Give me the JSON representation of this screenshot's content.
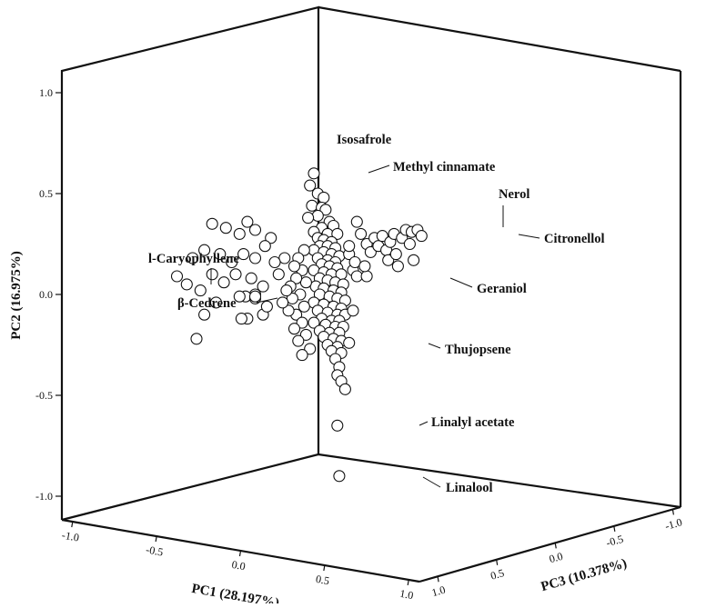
{
  "chart_data": {
    "type": "scatter",
    "projection": "3d",
    "axes": {
      "pc1": {
        "label": "PC1 (28.197%)",
        "ticks": [
          "-1.0",
          "-0.5",
          "0.0",
          "0.5",
          "1.0"
        ],
        "range": [
          -1,
          1
        ]
      },
      "pc2": {
        "label": "PC2 (16.975%)",
        "ticks": [
          "-1.0",
          "-0.5",
          "0.0",
          "0.5",
          "1.0"
        ],
        "range": [
          -1,
          1
        ]
      },
      "pc3": {
        "label": "PC3 (10.378%)",
        "ticks": [
          "1.0",
          "0.5",
          "0.0",
          "-0.5",
          "-1.0"
        ],
        "range": [
          -1,
          1
        ]
      }
    },
    "annotations": [
      {
        "text": "Isosafrole",
        "x": 0.0,
        "y": 0.67
      },
      {
        "text": "Methyl cinnamate",
        "x": 0.02,
        "y": 0.6
      },
      {
        "text": "Nerol",
        "x": 0.53,
        "y": 0.32
      },
      {
        "text": "Citronellol",
        "x": 0.55,
        "y": 0.29
      },
      {
        "text": "l-Caryophyllene",
        "x": -0.65,
        "y": 0.05
      },
      {
        "text": "Geraniol",
        "x": 0.27,
        "y": 0.09
      },
      {
        "text": "β-Cedrene",
        "x": -0.38,
        "y": -0.01
      },
      {
        "text": "Thujopsene",
        "x": 0.18,
        "y": -0.24
      },
      {
        "text": "Linalyl acetate",
        "x": 0.12,
        "y": -0.65
      },
      {
        "text": "Linalool",
        "x": 0.13,
        "y": -0.9
      }
    ],
    "points": [
      {
        "x": 0.0,
        "y": 0.6
      },
      {
        "x": -0.02,
        "y": 0.54
      },
      {
        "x": 0.02,
        "y": 0.5
      },
      {
        "x": 0.05,
        "y": 0.48
      },
      {
        "x": -0.01,
        "y": 0.44
      },
      {
        "x": 0.04,
        "y": 0.43
      },
      {
        "x": 0.06,
        "y": 0.42
      },
      {
        "x": 0.02,
        "y": 0.39
      },
      {
        "x": -0.03,
        "y": 0.38
      },
      {
        "x": 0.08,
        "y": 0.36
      },
      {
        "x": 0.1,
        "y": 0.34
      },
      {
        "x": 0.04,
        "y": 0.33
      },
      {
        "x": 0.0,
        "y": 0.31
      },
      {
        "x": 0.07,
        "y": 0.3
      },
      {
        "x": 0.12,
        "y": 0.3
      },
      {
        "x": 0.02,
        "y": 0.28
      },
      {
        "x": 0.05,
        "y": 0.27
      },
      {
        "x": 0.09,
        "y": 0.26
      },
      {
        "x": 0.03,
        "y": 0.24
      },
      {
        "x": 0.07,
        "y": 0.24
      },
      {
        "x": 0.11,
        "y": 0.23
      },
      {
        "x": 0.0,
        "y": 0.22
      },
      {
        "x": 0.05,
        "y": 0.21
      },
      {
        "x": 0.09,
        "y": 0.2
      },
      {
        "x": 0.13,
        "y": 0.19
      },
      {
        "x": 0.02,
        "y": 0.18
      },
      {
        "x": 0.07,
        "y": 0.17
      },
      {
        "x": 0.11,
        "y": 0.16
      },
      {
        "x": 0.04,
        "y": 0.15
      },
      {
        "x": 0.08,
        "y": 0.14
      },
      {
        "x": 0.12,
        "y": 0.13
      },
      {
        "x": 0.0,
        "y": 0.12
      },
      {
        "x": 0.05,
        "y": 0.11
      },
      {
        "x": 0.09,
        "y": 0.1
      },
      {
        "x": 0.14,
        "y": 0.1
      },
      {
        "x": 0.03,
        "y": 0.08
      },
      {
        "x": 0.07,
        "y": 0.07
      },
      {
        "x": 0.11,
        "y": 0.06
      },
      {
        "x": 0.15,
        "y": 0.05
      },
      {
        "x": 0.01,
        "y": 0.04
      },
      {
        "x": 0.05,
        "y": 0.03
      },
      {
        "x": 0.1,
        "y": 0.02
      },
      {
        "x": 0.14,
        "y": 0.01
      },
      {
        "x": 0.03,
        "y": 0.0
      },
      {
        "x": 0.08,
        "y": -0.01
      },
      {
        "x": 0.12,
        "y": -0.02
      },
      {
        "x": 0.16,
        "y": -0.03
      },
      {
        "x": 0.0,
        "y": -0.04
      },
      {
        "x": 0.05,
        "y": -0.05
      },
      {
        "x": 0.1,
        "y": -0.06
      },
      {
        "x": 0.14,
        "y": -0.07
      },
      {
        "x": 0.02,
        "y": -0.08
      },
      {
        "x": 0.07,
        "y": -0.09
      },
      {
        "x": 0.12,
        "y": -0.1
      },
      {
        "x": 0.16,
        "y": -0.1
      },
      {
        "x": 0.04,
        "y": -0.12
      },
      {
        "x": 0.09,
        "y": -0.13
      },
      {
        "x": 0.13,
        "y": -0.13
      },
      {
        "x": 0.0,
        "y": -0.14
      },
      {
        "x": 0.06,
        "y": -0.15
      },
      {
        "x": 0.11,
        "y": -0.16
      },
      {
        "x": 0.15,
        "y": -0.16
      },
      {
        "x": 0.03,
        "y": -0.18
      },
      {
        "x": 0.08,
        "y": -0.19
      },
      {
        "x": 0.13,
        "y": -0.19
      },
      {
        "x": 0.05,
        "y": -0.21
      },
      {
        "x": 0.1,
        "y": -0.22
      },
      {
        "x": 0.14,
        "y": -0.23
      },
      {
        "x": 0.07,
        "y": -0.25
      },
      {
        "x": 0.12,
        "y": -0.26
      },
      {
        "x": 0.09,
        "y": -0.28
      },
      {
        "x": 0.14,
        "y": -0.29
      },
      {
        "x": 0.11,
        "y": -0.32
      },
      {
        "x": 0.13,
        "y": -0.36
      },
      {
        "x": 0.12,
        "y": -0.4
      },
      {
        "x": 0.14,
        "y": -0.43
      },
      {
        "x": 0.16,
        "y": -0.47
      },
      {
        "x": 0.18,
        "y": -0.24
      },
      {
        "x": -0.05,
        "y": 0.22
      },
      {
        "x": -0.08,
        "y": 0.18
      },
      {
        "x": -0.06,
        "y": 0.12
      },
      {
        "x": -0.1,
        "y": 0.14
      },
      {
        "x": -0.04,
        "y": 0.06
      },
      {
        "x": -0.09,
        "y": 0.08
      },
      {
        "x": -0.12,
        "y": 0.04
      },
      {
        "x": -0.07,
        "y": 0.0
      },
      {
        "x": -0.11,
        "y": -0.02
      },
      {
        "x": -0.05,
        "y": -0.06
      },
      {
        "x": -0.09,
        "y": -0.1
      },
      {
        "x": -0.13,
        "y": -0.08
      },
      {
        "x": -0.06,
        "y": -0.14
      },
      {
        "x": -0.1,
        "y": -0.17
      },
      {
        "x": -0.04,
        "y": -0.2
      },
      {
        "x": -0.08,
        "y": -0.23
      },
      {
        "x": -0.02,
        "y": -0.27
      },
      {
        "x": -0.06,
        "y": -0.3
      },
      {
        "x": -0.14,
        "y": 0.02
      },
      {
        "x": -0.16,
        "y": -0.04
      },
      {
        "x": -0.18,
        "y": 0.1
      },
      {
        "x": -0.15,
        "y": 0.18
      },
      {
        "x": -0.2,
        "y": 0.16
      },
      {
        "x": 0.18,
        "y": 0.2
      },
      {
        "x": 0.2,
        "y": 0.12
      },
      {
        "x": 0.2,
        "y": -0.08
      },
      {
        "x": 0.22,
        "y": 0.36
      },
      {
        "x": 0.21,
        "y": 0.16
      },
      {
        "x": 0.24,
        "y": 0.3
      },
      {
        "x": 0.27,
        "y": 0.25
      },
      {
        "x": 0.29,
        "y": 0.21
      },
      {
        "x": 0.31,
        "y": 0.28
      },
      {
        "x": 0.33,
        "y": 0.24
      },
      {
        "x": 0.35,
        "y": 0.29
      },
      {
        "x": 0.37,
        "y": 0.22
      },
      {
        "x": 0.38,
        "y": 0.17
      },
      {
        "x": 0.39,
        "y": 0.26
      },
      {
        "x": 0.41,
        "y": 0.3
      },
      {
        "x": 0.42,
        "y": 0.2
      },
      {
        "x": 0.43,
        "y": 0.14
      },
      {
        "x": 0.45,
        "y": 0.28
      },
      {
        "x": 0.47,
        "y": 0.32
      },
      {
        "x": 0.49,
        "y": 0.25
      },
      {
        "x": 0.5,
        "y": 0.31
      },
      {
        "x": 0.51,
        "y": 0.17
      },
      {
        "x": 0.53,
        "y": 0.32
      },
      {
        "x": 0.55,
        "y": 0.29
      },
      {
        "x": 0.22,
        "y": 0.09
      },
      {
        "x": 0.27,
        "y": 0.09
      },
      {
        "x": 0.18,
        "y": 0.24
      },
      {
        "x": 0.26,
        "y": 0.14
      },
      {
        "x": -0.3,
        "y": 0.32
      },
      {
        "x": -0.34,
        "y": 0.36
      },
      {
        "x": -0.38,
        "y": 0.3
      },
      {
        "x": -0.45,
        "y": 0.33
      },
      {
        "x": -0.52,
        "y": 0.35
      },
      {
        "x": -0.3,
        "y": 0.18
      },
      {
        "x": -0.36,
        "y": 0.2
      },
      {
        "x": -0.42,
        "y": 0.16
      },
      {
        "x": -0.48,
        "y": 0.2
      },
      {
        "x": -0.56,
        "y": 0.22
      },
      {
        "x": -0.62,
        "y": 0.18
      },
      {
        "x": -0.32,
        "y": 0.08
      },
      {
        "x": -0.4,
        "y": 0.1
      },
      {
        "x": -0.46,
        "y": 0.06
      },
      {
        "x": -0.52,
        "y": 0.1
      },
      {
        "x": -0.58,
        "y": 0.02
      },
      {
        "x": -0.65,
        "y": 0.05
      },
      {
        "x": -0.7,
        "y": 0.09
      },
      {
        "x": -0.26,
        "y": 0.04
      },
      {
        "x": -0.3,
        "y": 0.0
      },
      {
        "x": -0.35,
        "y": -0.01
      },
      {
        "x": -0.38,
        "y": -0.01
      },
      {
        "x": -0.3,
        "y": -0.02
      },
      {
        "x": -0.3,
        "y": -0.01
      },
      {
        "x": -0.26,
        "y": -0.1
      },
      {
        "x": -0.34,
        "y": -0.12
      },
      {
        "x": -0.37,
        "y": -0.12
      },
      {
        "x": -0.5,
        "y": -0.04
      },
      {
        "x": -0.56,
        "y": -0.1
      },
      {
        "x": -0.6,
        "y": -0.22
      },
      {
        "x": -0.22,
        "y": 0.28
      },
      {
        "x": -0.25,
        "y": 0.24
      },
      {
        "x": -0.24,
        "y": -0.06
      },
      {
        "x": 0.12,
        "y": -0.65
      },
      {
        "x": 0.13,
        "y": -0.9
      }
    ]
  }
}
